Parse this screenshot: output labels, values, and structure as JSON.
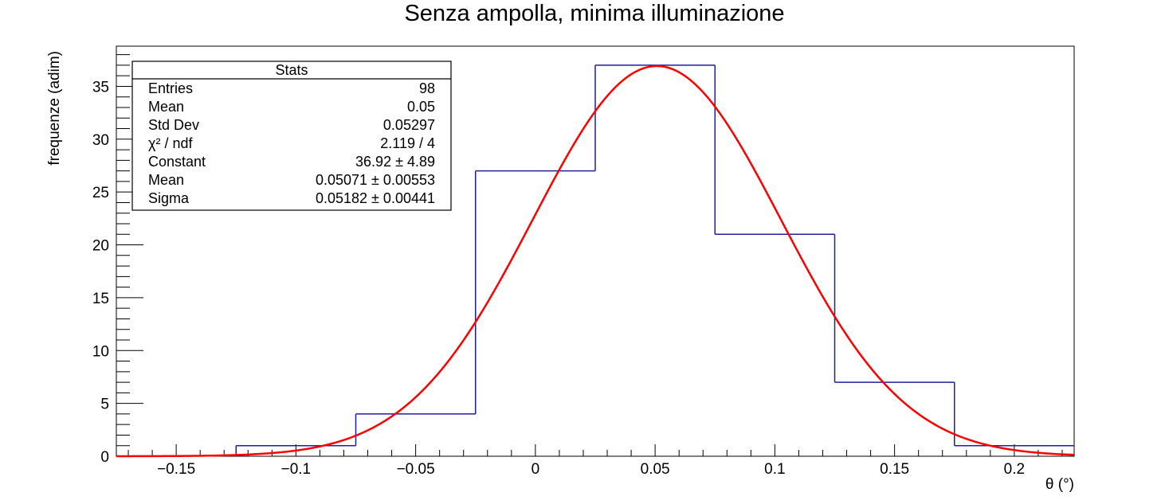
{
  "chart_data": {
    "type": "histogram",
    "title": "Senza ampolla, minima illuminazione",
    "xlabel": "θ (°)",
    "ylabel": "frequenze (adim)",
    "xlim": [
      -0.175,
      0.225
    ],
    "ylim": [
      0,
      38.8
    ],
    "x_ticks": [
      -0.15,
      -0.1,
      -0.05,
      0,
      0.05,
      0.1,
      0.15,
      0.2
    ],
    "x_tick_labels": [
      "−0.15",
      "−0.1",
      "−0.05",
      "0",
      "0.05",
      "0.1",
      "0.15",
      "0.2"
    ],
    "y_ticks": [
      0,
      5,
      10,
      15,
      20,
      25,
      30,
      35
    ],
    "y_tick_labels": [
      "0",
      "5",
      "10",
      "15",
      "20",
      "25",
      "30",
      "35"
    ],
    "histogram": {
      "color": "#1f1f9f",
      "bins": [
        {
          "low": -0.125,
          "high": -0.075,
          "count": 1
        },
        {
          "low": -0.075,
          "high": -0.025,
          "count": 4
        },
        {
          "low": -0.025,
          "high": 0.025,
          "count": 27
        },
        {
          "low": 0.025,
          "high": 0.075,
          "count": 37
        },
        {
          "low": 0.075,
          "high": 0.125,
          "count": 21
        },
        {
          "low": 0.125,
          "high": 0.175,
          "count": 7
        },
        {
          "low": 0.175,
          "high": 0.225,
          "count": 1
        }
      ]
    },
    "fit": {
      "type": "gaussian",
      "color": "#ff0000",
      "constant": 36.92,
      "mean": 0.05071,
      "sigma": 0.05182
    },
    "stats_box": {
      "title": "Stats",
      "rows": [
        {
          "label": "Entries",
          "value": "98"
        },
        {
          "label": "Mean",
          "value": "0.05"
        },
        {
          "label": "Std Dev",
          "value": "0.05297"
        },
        {
          "label": "χ² / ndf",
          "value": "2.119 / 4"
        },
        {
          "label": "Constant",
          "value": "36.92 ± 4.89"
        },
        {
          "label": "Mean",
          "value": "0.05071 ± 0.00553"
        },
        {
          "label": "Sigma",
          "value": "0.05182 ± 0.00441"
        }
      ]
    },
    "grid": false,
    "legend": "none"
  }
}
